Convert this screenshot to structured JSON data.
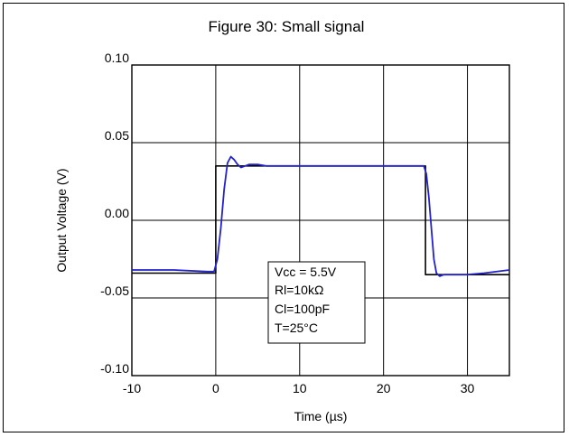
{
  "chart_data": {
    "type": "line",
    "title": "Figure 30: Small signal",
    "xlabel": "Time (µs)",
    "ylabel": "Output Voltage (V)",
    "xlim": [
      -10,
      35
    ],
    "ylim": [
      -0.1,
      0.1
    ],
    "grid": true,
    "x_ticks": [
      {
        "value": -10,
        "label": "-10"
      },
      {
        "value": 0,
        "label": "0"
      },
      {
        "value": 10,
        "label": "10"
      },
      {
        "value": 20,
        "label": "20"
      },
      {
        "value": 30,
        "label": "30"
      }
    ],
    "y_ticks": [
      {
        "value": -0.1,
        "label": "-0.10"
      },
      {
        "value": -0.05,
        "label": "-0.05"
      },
      {
        "value": 0.0,
        "label": "0.00"
      },
      {
        "value": 0.05,
        "label": "0.05"
      },
      {
        "value": 0.1,
        "label": "0.10"
      }
    ],
    "series": [
      {
        "color": "#000000",
        "x": [
          -10,
          0,
          0,
          25,
          25,
          35
        ],
        "y": [
          -0.034,
          -0.034,
          0.035,
          0.035,
          -0.035,
          -0.035
        ]
      },
      {
        "color": "#2222cc",
        "x": [
          -10,
          -5,
          -1,
          -0.2,
          0.2,
          0.6,
          1.0,
          1.4,
          1.8,
          2.2,
          2.6,
          3.0,
          3.5,
          4.0,
          5.0,
          6.0,
          8.0,
          12,
          16,
          20,
          24,
          24.8,
          25.1,
          25.4,
          25.7,
          26.0,
          26.3,
          26.7,
          27.2,
          28,
          30,
          32,
          35
        ],
        "y": [
          -0.032,
          -0.032,
          -0.033,
          -0.033,
          -0.025,
          -0.005,
          0.02,
          0.037,
          0.041,
          0.039,
          0.036,
          0.034,
          0.035,
          0.036,
          0.036,
          0.035,
          0.035,
          0.035,
          0.035,
          0.035,
          0.035,
          0.035,
          0.03,
          0.015,
          -0.005,
          -0.025,
          -0.034,
          -0.036,
          -0.035,
          -0.035,
          -0.035,
          -0.034,
          -0.032
        ]
      }
    ],
    "annotation": [
      "Vcc = 5.5V",
      "Rl=10kΩ",
      "Cl=100pF",
      "T=25°C"
    ]
  }
}
